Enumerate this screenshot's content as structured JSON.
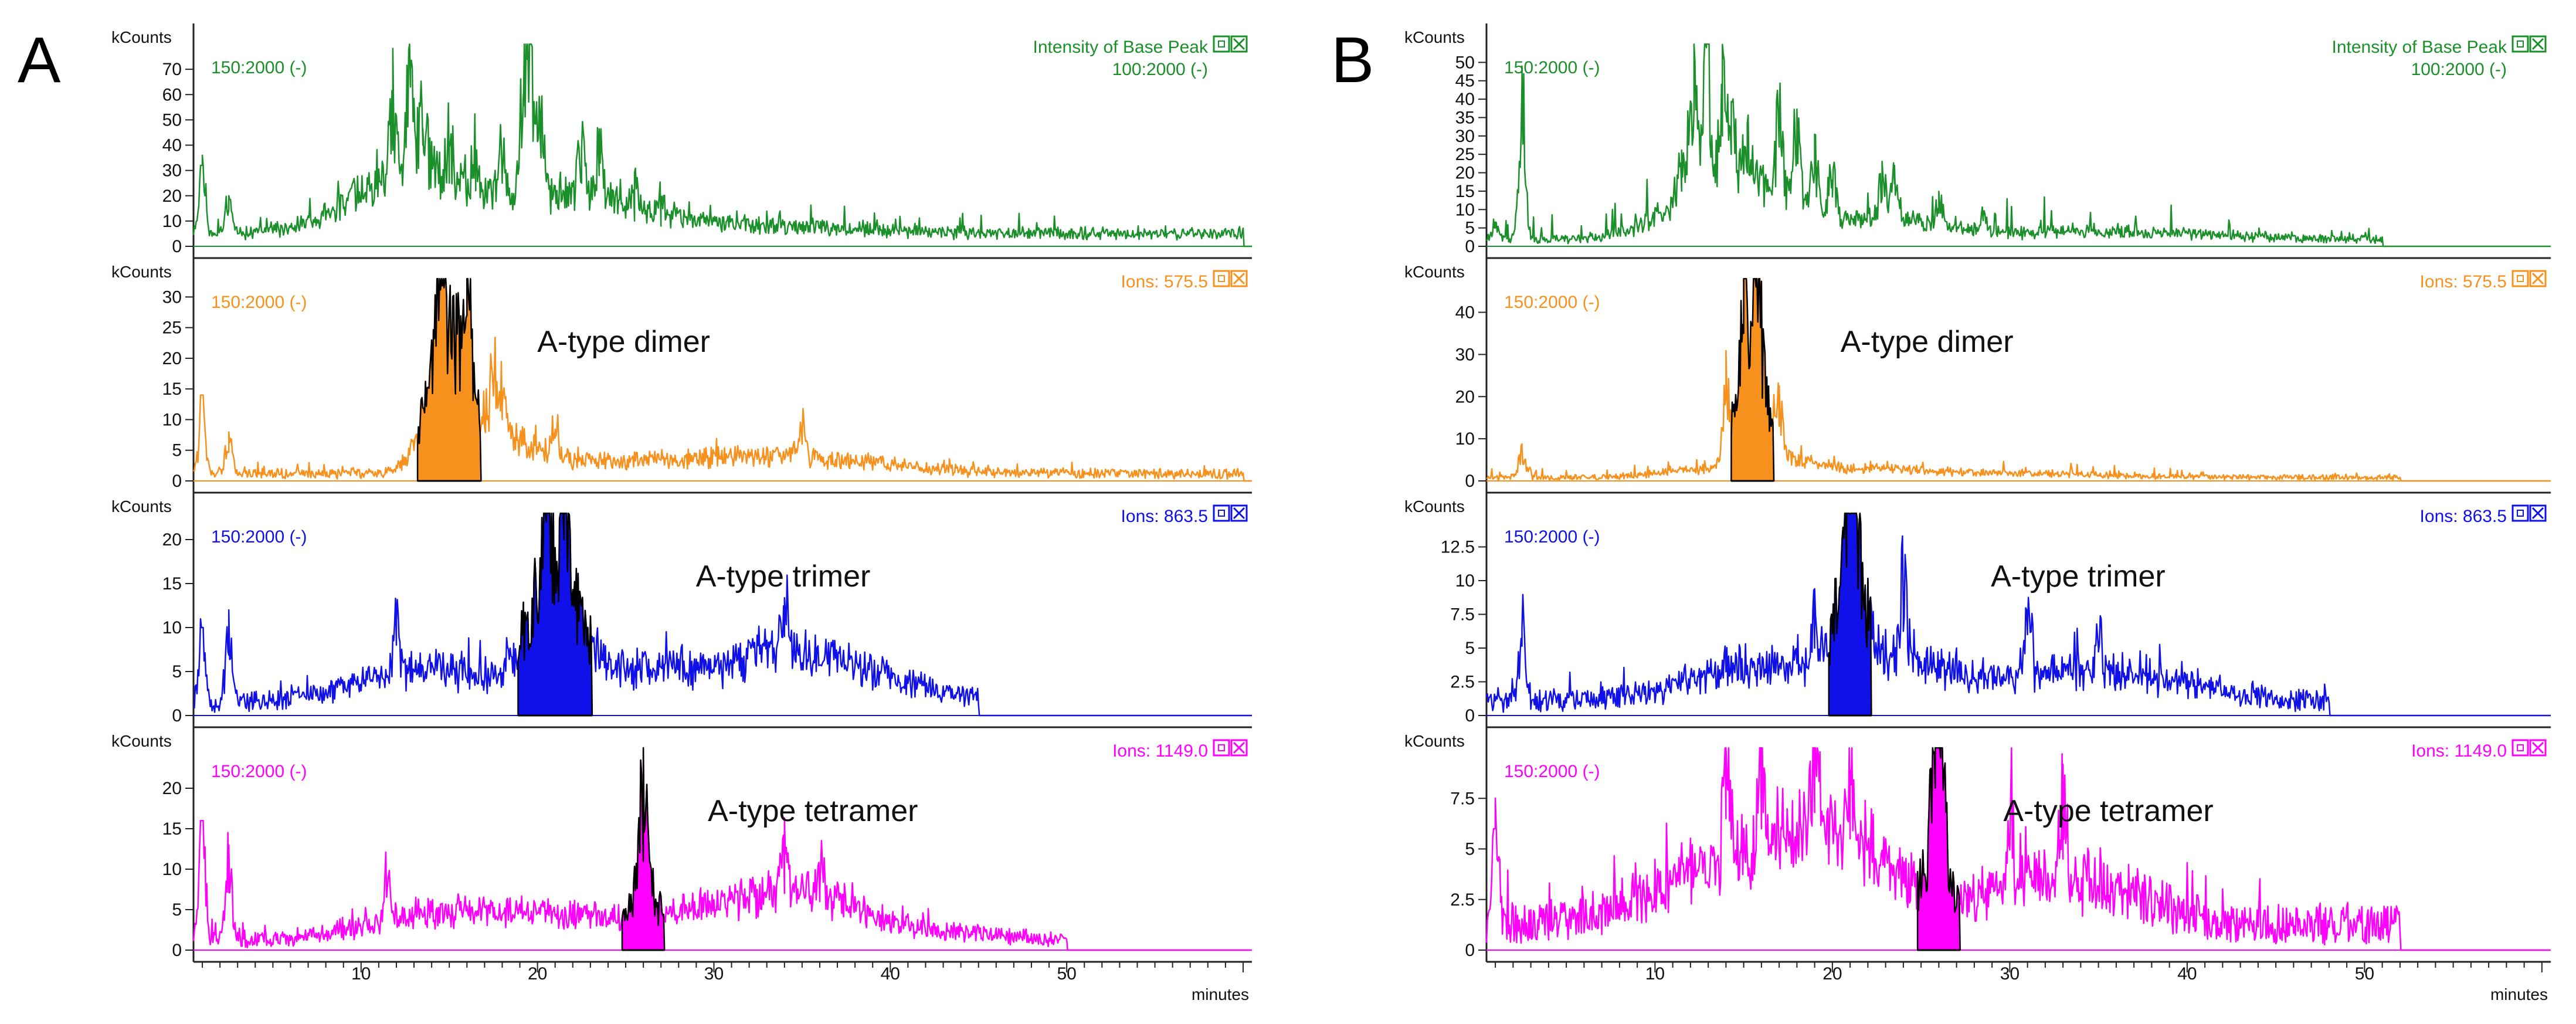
{
  "figure": {
    "x_unit_label": "minutes",
    "y_unit_label": "kCounts",
    "x_ticks": [
      10,
      20,
      30,
      40,
      50
    ],
    "x_range": [
      0.5,
      60.5
    ]
  },
  "chart_data": [
    {
      "panel_letter": "A",
      "type": "line",
      "xlabel": "minutes",
      "traces": [
        {
          "name": "Intensity of Base Peak",
          "filter": "100:2000 (-)",
          "scan_range": "150:2000 (-)",
          "color": "#1a8f2a",
          "yticks": [
            0,
            10,
            20,
            30,
            40,
            50,
            60,
            70
          ],
          "ylim": [
            0,
            80
          ],
          "profile": {
            "baseline": 4,
            "noise": 3,
            "tail": 20,
            "end": 60,
            "bumps": [
              [
                12,
                20,
                3
              ],
              [
                14,
                10,
                2
              ],
              [
                19.5,
                15,
                2.5
              ],
              [
                23,
                8,
                2
              ],
              [
                25,
                4,
                2
              ],
              [
                28,
                4,
                2
              ],
              [
                33,
                3,
                5
              ]
            ],
            "peaks": [
              [
                1,
                32
              ],
              [
                2.5,
                20
              ],
              [
                11.8,
                38
              ],
              [
                12.8,
                63
              ],
              [
                13.5,
                40
              ],
              [
                15,
                25
              ],
              [
                16.5,
                22
              ],
              [
                18,
                25
              ],
              [
                19.2,
                60
              ],
              [
                19.6,
                80
              ],
              [
                20.2,
                35
              ],
              [
                22.5,
                25
              ],
              [
                23.5,
                28
              ],
              [
                25.5,
                10
              ],
              [
                27,
                8
              ]
            ]
          }
        },
        {
          "name": "Ions: 575.5",
          "scan_range": "150:2000 (-)",
          "label": "A-type dimer",
          "color": "#f7911d",
          "yticks": [
            0,
            5,
            10,
            15,
            20,
            25,
            30
          ],
          "ylim": [
            0,
            33
          ],
          "profile": {
            "baseline": 0.5,
            "noise": 1.5,
            "tail": 6,
            "end": 60,
            "bumps": [
              [
                15,
                22,
                1.2
              ],
              [
                18,
                5,
                2
              ],
              [
                25,
                2,
                6
              ],
              [
                35,
                2.5,
                5
              ]
            ],
            "peaks": [
              [
                1,
                14
              ],
              [
                2.5,
                8
              ],
              [
                14.5,
                32
              ],
              [
                16,
                27
              ],
              [
                17.5,
                14
              ],
              [
                18,
                10
              ],
              [
                21,
                7
              ],
              [
                35,
                6
              ]
            ]
          }
        },
        {
          "name": "Ions: 863.5",
          "scan_range": "150:2000 (-)",
          "label": "A-type trimer",
          "color": "#1010e8",
          "yticks": [
            0,
            5,
            10,
            15,
            20
          ],
          "ylim": [
            0,
            23
          ],
          "profile": {
            "baseline": 0.5,
            "noise": 2,
            "tail": 6,
            "end": 45,
            "bumps": [
              [
                21,
                15,
                1.4
              ],
              [
                14,
                4,
                4
              ],
              [
                26,
                4,
                3
              ],
              [
                34,
                6,
                3.5
              ],
              [
                40,
                2,
                3
              ]
            ],
            "peaks": [
              [
                1,
                10
              ],
              [
                2.5,
                12
              ],
              [
                20.5,
                22
              ],
              [
                21.5,
                20
              ],
              [
                34,
                9
              ],
              [
                12,
                8
              ]
            ]
          }
        },
        {
          "name": "Ions: 1149.0",
          "scan_range": "150:2000 (-)",
          "label": "A-type tetramer",
          "color": "#ff00ff",
          "yticks": [
            0,
            5,
            10,
            15,
            20
          ],
          "ylim": [
            0,
            25
          ],
          "profile": {
            "baseline": 0.3,
            "noise": 1.8,
            "tail": 6,
            "end": 50,
            "bumps": [
              [
                14,
                3,
                4
              ],
              [
                22,
                3,
                5
              ],
              [
                26,
                8,
                0.4
              ],
              [
                32,
                4,
                4
              ],
              [
                36,
                4,
                3
              ],
              [
                44,
                1,
                3
              ]
            ],
            "peaks": [
              [
                1,
                16
              ],
              [
                2.5,
                13
              ],
              [
                11.5,
                8
              ],
              [
                26,
                11
              ],
              [
                34,
                7
              ],
              [
                36,
                6
              ]
            ]
          }
        }
      ]
    },
    {
      "panel_letter": "B",
      "type": "line",
      "xlabel": "minutes",
      "traces": [
        {
          "name": "Intensity of Base Peak",
          "filter": "100:2000 (-)",
          "scan_range": "150:2000 (-)",
          "color": "#1a8f2a",
          "yticks": [
            0,
            5,
            10,
            15,
            20,
            25,
            30,
            35,
            40,
            45,
            50
          ],
          "ylim": [
            0,
            55
          ],
          "profile": {
            "baseline": 1,
            "noise": 2,
            "tail": 25,
            "end": 51,
            "bumps": [
              [
                13,
                14,
                2.5
              ],
              [
                17,
                10,
                2.5
              ],
              [
                23,
                5,
                2
              ],
              [
                26,
                2,
                2
              ],
              [
                33,
                2,
                5
              ],
              [
                40,
                1,
                4
              ]
            ],
            "peaks": [
              [
                1,
                5
              ],
              [
                2.5,
                49
              ],
              [
                11.5,
                15
              ],
              [
                12.2,
                37
              ],
              [
                12.9,
                54
              ],
              [
                13.8,
                30
              ],
              [
                14.3,
                25
              ],
              [
                15.2,
                20
              ],
              [
                17,
                27
              ],
              [
                18,
                24
              ],
              [
                19,
                20
              ],
              [
                20,
                18
              ],
              [
                22.8,
                13
              ],
              [
                23.5,
                17
              ],
              [
                26,
                9
              ],
              [
                28.5,
                7
              ]
            ]
          }
        },
        {
          "name": "Ions: 575.5",
          "scan_range": "150:2000 (-)",
          "label": "A-type dimer",
          "color": "#f7911d",
          "yticks": [
            0,
            10,
            20,
            30,
            40
          ],
          "ylim": [
            0,
            48
          ],
          "profile": {
            "baseline": 0.3,
            "noise": 1.2,
            "tail": 6,
            "end": 52,
            "bumps": [
              [
                15.5,
                30,
                0.8
              ],
              [
                12,
                2,
                2
              ],
              [
                17.5,
                4,
                1.5
              ],
              [
                22,
                2,
                3
              ],
              [
                30,
                1,
                5
              ]
            ],
            "peaks": [
              [
                2.5,
                8
              ],
              [
                15.7,
                46
              ],
              [
                15,
                35
              ],
              [
                17,
                13
              ],
              [
                14,
                20
              ]
            ]
          }
        },
        {
          "name": "Ions: 863.5",
          "scan_range": "150:2000 (-)",
          "label": "A-type trimer",
          "color": "#1010e8",
          "yticks": [
            0,
            2.5,
            5,
            7.5,
            10,
            12.5
          ],
          "ylim": [
            0,
            15
          ],
          "profile": {
            "baseline": 0.3,
            "noise": 1.5,
            "tail": 6,
            "end": 48,
            "bumps": [
              [
                21,
                8,
                0.8
              ],
              [
                16,
                3,
                4
              ],
              [
                24,
                3,
                2.5
              ],
              [
                33,
                2.5,
                4
              ],
              [
                40,
                1,
                3
              ]
            ],
            "peaks": [
              [
                2.5,
                6.5
              ],
              [
                21.2,
                15
              ],
              [
                20.8,
                11
              ],
              [
                19,
                5
              ],
              [
                24,
                7.5
              ],
              [
                31,
                6
              ],
              [
                35,
                5
              ]
            ]
          }
        },
        {
          "name": "Ions: 1149.0",
          "scan_range": "150:2000 (-)",
          "label": "A-type tetramer",
          "color": "#ff00ff",
          "yticks": [
            0,
            2.5,
            5,
            7.5
          ],
          "ylim": [
            0,
            10
          ],
          "profile": {
            "baseline": 0.3,
            "noise": 2,
            "tail": 6,
            "end": 52,
            "bumps": [
              [
                14,
                3,
                4
              ],
              [
                19,
                2.5,
                3
              ],
              [
                26,
                6,
                0.35
              ],
              [
                22,
                2,
                3
              ],
              [
                33,
                2.5,
                4
              ]
            ],
            "peaks": [
              [
                1,
                6
              ],
              [
                14,
                6.5
              ],
              [
                16,
                6
              ],
              [
                19,
                6.8
              ],
              [
                21,
                5.5
              ],
              [
                26.1,
                9.5
              ],
              [
                25.8,
                8
              ],
              [
                30,
                5
              ],
              [
                33,
                4.5
              ]
            ]
          }
        }
      ]
    }
  ]
}
